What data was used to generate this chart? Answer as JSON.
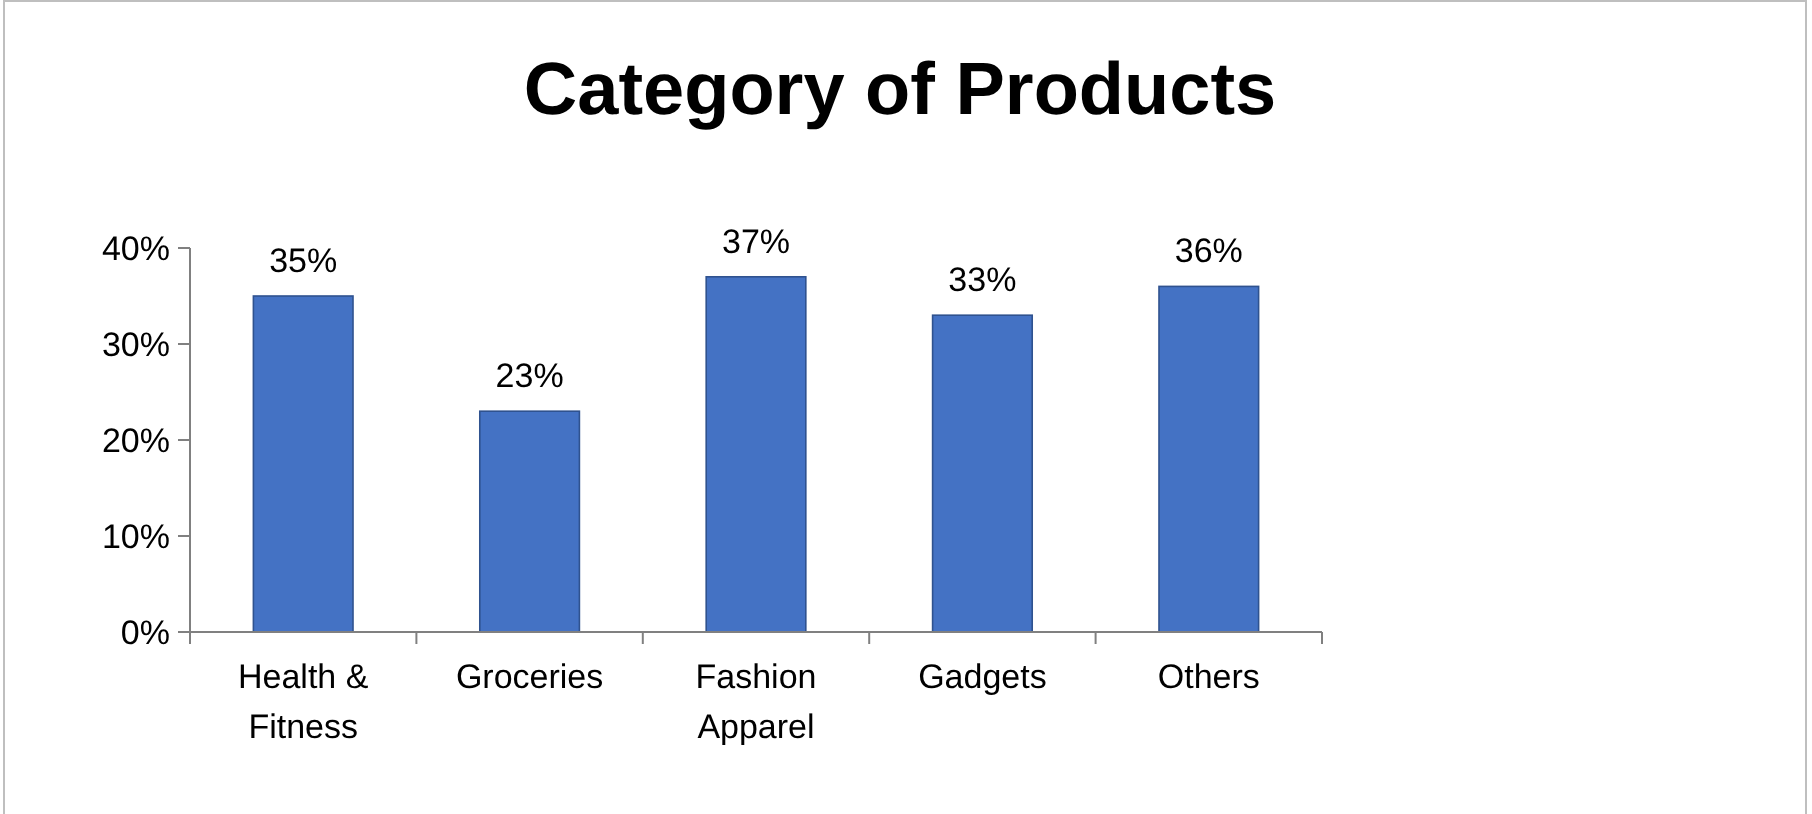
{
  "chart_data": {
    "type": "bar",
    "title": "Category of Products",
    "categories": [
      "Health & Fitness",
      "Groceries",
      "Fashion Apparel",
      "Gadgets",
      "Others"
    ],
    "values": [
      35,
      23,
      37,
      33,
      36
    ],
    "value_labels": [
      "35%",
      "23%",
      "37%",
      "33%",
      "36%"
    ],
    "color": "#4472c4",
    "ylim": [
      0,
      40
    ],
    "yticks": [
      {
        "value": 0,
        "label": "0%"
      },
      {
        "value": 10,
        "label": "10%"
      },
      {
        "value": 20,
        "label": "20%"
      },
      {
        "value": 30,
        "label": "30%"
      },
      {
        "value": 40,
        "label": "40%"
      }
    ],
    "grid": false
  }
}
